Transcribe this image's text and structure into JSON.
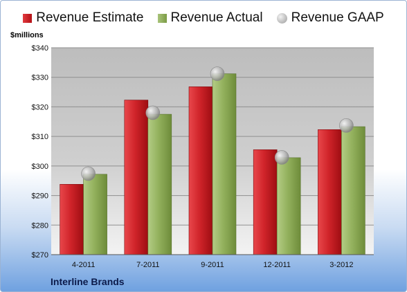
{
  "legend": {
    "estimate": "Revenue Estimate",
    "actual": "Revenue Actual",
    "gaap": "Revenue GAAP"
  },
  "unit_label": "$millions",
  "company": "Interline Brands",
  "colors": {
    "estimate": "#c81d22",
    "actual": "#8fae5a",
    "gaap": "#bdbdbd"
  },
  "chart_data": {
    "type": "bar",
    "categories": [
      "4-2011",
      "7-2011",
      "9-2011",
      "12-2011",
      "3-2012"
    ],
    "series": [
      {
        "name": "Revenue Estimate",
        "values": [
          293.8,
          322.3,
          326.8,
          305.5,
          312.3
        ]
      },
      {
        "name": "Revenue Actual",
        "values": [
          297.2,
          317.5,
          331.2,
          302.8,
          313.3
        ]
      },
      {
        "name": "Revenue GAAP",
        "values": [
          297.4,
          318.0,
          331.2,
          302.9,
          313.7
        ],
        "marker": "circle"
      }
    ],
    "y_ticks": [
      "$270",
      "$280",
      "$290",
      "$300",
      "$310",
      "$320",
      "$330",
      "$340"
    ],
    "ylim": [
      270,
      340
    ],
    "grid": true,
    "legend_position": "top"
  }
}
